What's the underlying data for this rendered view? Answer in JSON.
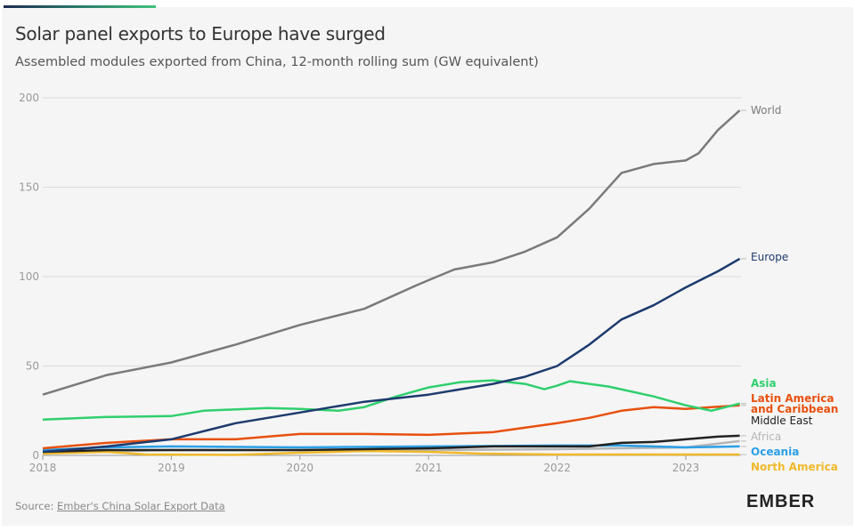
{
  "header": {
    "title": "Solar panel exports to Europe have surged",
    "subtitle": "Assembled modules exported from China, 12-month rolling sum (GW equivalent)"
  },
  "footer": {
    "source_prefix": "Source: ",
    "source_link": "Ember's China Solar Export Data",
    "logo": "EMBER"
  },
  "chart_data": {
    "type": "line",
    "title": "Solar panel exports to Europe have surged",
    "ylim": [
      0,
      200
    ],
    "xlim": [
      2018,
      2023.42
    ],
    "yticks": [
      0,
      50,
      100,
      150,
      200
    ],
    "xticks": [
      2018,
      2019,
      2020,
      2021,
      2022,
      2023
    ],
    "grid": true,
    "legend": "right-end labels",
    "series": [
      {
        "name": "World",
        "color": "#7a7a7a",
        "x": [
          2018,
          2018.5,
          2019,
          2019.5,
          2020,
          2020.5,
          2020.9,
          2021,
          2021.2,
          2021.5,
          2021.75,
          2022,
          2022.25,
          2022.5,
          2022.75,
          2023,
          2023.1,
          2023.25,
          2023.42
        ],
        "y": [
          34,
          45,
          52,
          62,
          73,
          82,
          95,
          98,
          104,
          108,
          114,
          122,
          138,
          158,
          163,
          165,
          169,
          182,
          193
        ]
      },
      {
        "name": "Europe",
        "color": "#1d3a6e",
        "x": [
          2018,
          2018.5,
          2019,
          2019.5,
          2020,
          2020.25,
          2020.5,
          2020.75,
          2021,
          2021.25,
          2021.5,
          2021.75,
          2022,
          2022.25,
          2022.5,
          2022.75,
          2023,
          2023.25,
          2023.42
        ],
        "y": [
          2,
          5,
          9,
          18,
          24,
          27,
          30,
          32,
          34,
          37,
          40,
          44,
          50,
          62,
          76,
          84,
          94,
          103,
          110
        ]
      },
      {
        "name": "Asia",
        "color": "#2fcf6e",
        "x": [
          2018,
          2018.5,
          2019,
          2019.25,
          2019.75,
          2020,
          2020.3,
          2020.5,
          2020.75,
          2021,
          2021.25,
          2021.5,
          2021.75,
          2021.9,
          2022,
          2022.1,
          2022.4,
          2022.75,
          2023,
          2023.2,
          2023.42
        ],
        "y": [
          20,
          21.5,
          22,
          25,
          26.5,
          26,
          25,
          27,
          33,
          38,
          41,
          42,
          40,
          37,
          39,
          41.5,
          38.5,
          33,
          28,
          25,
          29
        ]
      },
      {
        "name": "Latin America and Caribbean",
        "color": "#e8500e",
        "x": [
          2018,
          2018.5,
          2019,
          2019.5,
          2020,
          2020.5,
          2021,
          2021.5,
          2022,
          2022.25,
          2022.5,
          2022.75,
          2023,
          2023.2,
          2023.42
        ],
        "y": [
          4,
          7,
          9,
          9,
          12,
          12,
          11.5,
          13,
          18,
          21,
          25,
          27,
          26,
          27,
          28
        ]
      },
      {
        "name": "Middle East",
        "color": "#222222",
        "x": [
          2018,
          2018.5,
          2019,
          2019.5,
          2020,
          2020.5,
          2021,
          2021.5,
          2022,
          2022.25,
          2022.5,
          2022.75,
          2023,
          2023.25,
          2023.42
        ],
        "y": [
          2,
          3,
          3,
          3,
          3,
          3.5,
          4,
          5,
          5,
          5,
          7,
          7.5,
          9,
          10.5,
          11
        ]
      },
      {
        "name": "Africa",
        "color": "#b5b5b5",
        "x": [
          2018,
          2019,
          2020,
          2021,
          2022,
          2022.5,
          2023,
          2023.42
        ],
        "y": [
          1.5,
          3,
          3,
          3,
          3.5,
          4,
          4.5,
          8
        ]
      },
      {
        "name": "Oceania",
        "color": "#2b9fe6",
        "x": [
          2018,
          2018.5,
          2019,
          2020,
          2021,
          2022,
          2022.5,
          2023,
          2023.42
        ],
        "y": [
          3,
          4.5,
          5,
          4.5,
          5,
          5.5,
          5.5,
          4.5,
          5
        ]
      },
      {
        "name": "North America",
        "color": "#f0b92a",
        "x": [
          2018,
          2018.5,
          2018.8,
          2019.5,
          2020,
          2020.5,
          2021,
          2021.4,
          2022,
          2023.42
        ],
        "y": [
          1,
          2,
          0.5,
          0.3,
          1.5,
          2.5,
          2,
          1,
          0.5,
          0.5
        ]
      }
    ]
  }
}
